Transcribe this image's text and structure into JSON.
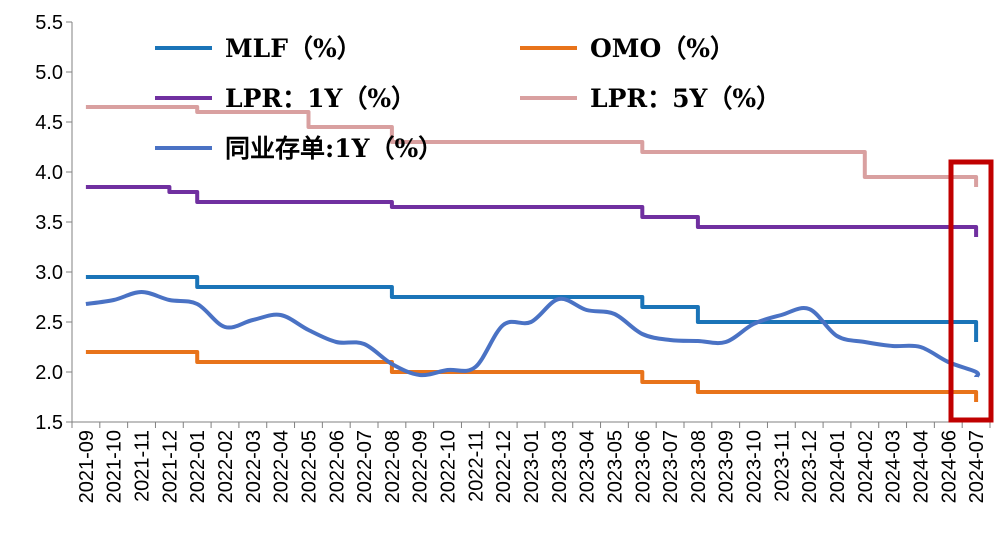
{
  "chart_data": {
    "type": "line",
    "title": "",
    "xlabel": "",
    "ylabel": "",
    "ylim": [
      1.5,
      5.5
    ],
    "yticks": [
      "1.5",
      "2.0",
      "2.5",
      "3.0",
      "3.5",
      "4.0",
      "4.5",
      "5.0",
      "5.5"
    ],
    "categories": [
      "2021-09",
      "2021-10",
      "2021-11",
      "2021-12",
      "2022-01",
      "2022-02",
      "2022-03",
      "2022-04",
      "2022-05",
      "2022-06",
      "2022-07",
      "2022-08",
      "2022-09",
      "2022-10",
      "2022-11",
      "2022-12",
      "2023-01",
      "2023-03",
      "2023-04",
      "2023-05",
      "2023-06",
      "2023-07",
      "2023-08",
      "2023-09",
      "2023-10",
      "2023-11",
      "2023-12",
      "2024-01",
      "2024-02",
      "2024-03",
      "2024-04",
      "2024-06",
      "2024-07"
    ],
    "grid": false,
    "legend_position": "top",
    "highlight": "box around 2024-07",
    "series": [
      {
        "name": "MLF（%）",
        "color": "#1a74b8",
        "step": true,
        "points": [
          [
            0,
            2.95
          ],
          [
            4,
            2.95
          ],
          [
            4,
            2.85
          ],
          [
            11,
            2.85
          ],
          [
            11,
            2.75
          ],
          [
            20,
            2.75
          ],
          [
            20,
            2.65
          ],
          [
            22,
            2.65
          ],
          [
            22,
            2.5
          ],
          [
            32,
            2.5
          ],
          [
            32,
            2.3
          ]
        ]
      },
      {
        "name": "OMO（%）",
        "color": "#e8731a",
        "step": true,
        "points": [
          [
            0,
            2.2
          ],
          [
            4,
            2.2
          ],
          [
            4,
            2.1
          ],
          [
            11,
            2.1
          ],
          [
            11,
            2.0
          ],
          [
            20,
            2.0
          ],
          [
            20,
            1.9
          ],
          [
            22,
            1.9
          ],
          [
            22,
            1.8
          ],
          [
            32,
            1.8
          ],
          [
            32,
            1.7
          ]
        ]
      },
      {
        "name": "LPR：1Y（%）",
        "color": "#7030a0",
        "step": true,
        "points": [
          [
            0,
            3.85
          ],
          [
            3,
            3.85
          ],
          [
            3,
            3.8
          ],
          [
            4,
            3.8
          ],
          [
            4,
            3.7
          ],
          [
            11,
            3.7
          ],
          [
            11,
            3.65
          ],
          [
            20,
            3.65
          ],
          [
            20,
            3.55
          ],
          [
            22,
            3.55
          ],
          [
            22,
            3.45
          ],
          [
            32,
            3.45
          ],
          [
            32,
            3.35
          ]
        ]
      },
      {
        "name": "LPR：5Y（%）",
        "color": "#d9a0a0",
        "step": true,
        "points": [
          [
            0,
            4.65
          ],
          [
            4,
            4.65
          ],
          [
            4,
            4.6
          ],
          [
            8,
            4.6
          ],
          [
            8,
            4.45
          ],
          [
            11,
            4.45
          ],
          [
            11,
            4.3
          ],
          [
            20,
            4.3
          ],
          [
            20,
            4.2
          ],
          [
            28,
            4.2
          ],
          [
            28,
            3.95
          ],
          [
            32,
            3.95
          ],
          [
            32,
            3.85
          ]
        ]
      },
      {
        "name": "同业存单:1Y（%）",
        "color": "#4a72c4",
        "step": false,
        "points": [
          [
            0,
            2.68
          ],
          [
            1,
            2.72
          ],
          [
            2,
            2.8
          ],
          [
            3,
            2.72
          ],
          [
            4,
            2.68
          ],
          [
            5,
            2.45
          ],
          [
            6,
            2.52
          ],
          [
            7,
            2.57
          ],
          [
            8,
            2.42
          ],
          [
            9,
            2.3
          ],
          [
            10,
            2.28
          ],
          [
            11,
            2.08
          ],
          [
            12,
            1.97
          ],
          [
            13,
            2.02
          ],
          [
            14,
            2.05
          ],
          [
            15,
            2.47
          ],
          [
            16,
            2.5
          ],
          [
            17,
            2.73
          ],
          [
            18,
            2.62
          ],
          [
            19,
            2.58
          ],
          [
            20,
            2.38
          ],
          [
            21,
            2.32
          ],
          [
            22,
            2.31
          ],
          [
            23,
            2.3
          ],
          [
            24,
            2.48
          ],
          [
            25,
            2.57
          ],
          [
            26,
            2.63
          ],
          [
            27,
            2.36
          ],
          [
            28,
            2.3
          ],
          [
            29,
            2.26
          ],
          [
            30,
            2.25
          ],
          [
            31,
            2.1
          ],
          [
            32,
            2.0
          ],
          [
            32,
            1.95
          ]
        ]
      }
    ]
  }
}
